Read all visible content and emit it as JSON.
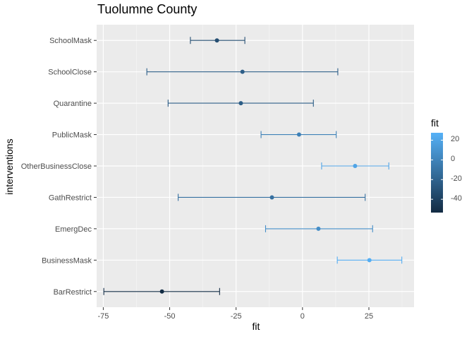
{
  "chart_data": {
    "type": "errorbar",
    "title": "Tuolumne County",
    "xlabel": "fit",
    "ylabel": "interventions",
    "xlim": [
      -77.5,
      42
    ],
    "x_ticks": [
      -75,
      -50,
      -25,
      0,
      25
    ],
    "x_tick_labels": [
      "-75",
      "-50",
      "-25",
      "0",
      "25"
    ],
    "categories": [
      "SchoolMask",
      "SchoolClose",
      "Quarantine",
      "PublicMask",
      "OtherBusinessClose",
      "GathRestrict",
      "EmergDec",
      "BusinessMask",
      "BarRestrict"
    ],
    "fit": [
      -32.2,
      -22.6,
      -23.2,
      -1.3,
      19.8,
      -11.5,
      6.0,
      25.2,
      -52.9
    ],
    "lower": [
      -42.2,
      -58.6,
      -50.6,
      -15.6,
      7.2,
      -46.8,
      -13.9,
      13.1,
      -74.8
    ],
    "upper": [
      -21.7,
      13.3,
      4.1,
      12.7,
      32.5,
      23.6,
      26.4,
      37.4,
      -31.2
    ],
    "grid": true,
    "legend": {
      "title": "fit",
      "position": "right",
      "range": [
        -53.5,
        27.5
      ],
      "ticks": [
        20,
        0,
        -20,
        -40
      ],
      "tick_labels": [
        "20",
        "0",
        "-20",
        "-40"
      ],
      "color_low": "#132b43",
      "color_high": "#56b1f7"
    }
  }
}
